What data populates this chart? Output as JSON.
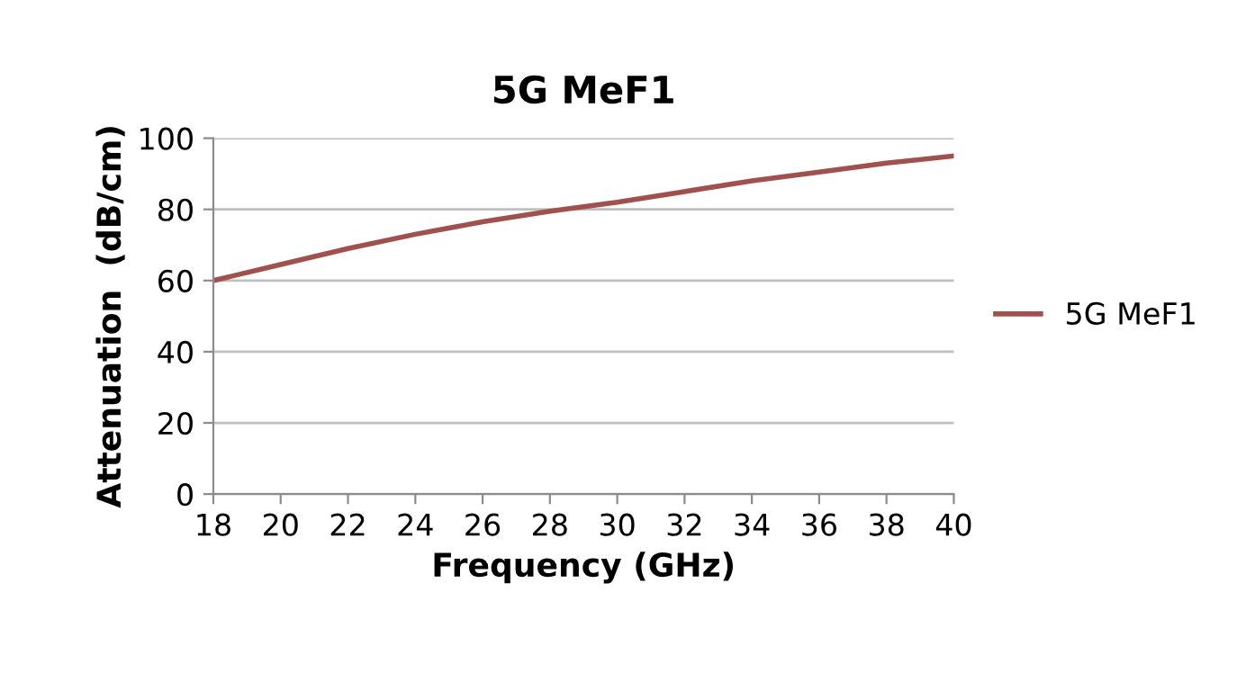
{
  "chart_data": {
    "type": "line",
    "title": "5G MeF1",
    "xlabel": "Frequency (GHz)",
    "ylabel": "Attenuation  (dB/cm)",
    "x": [
      18,
      20,
      22,
      24,
      26,
      28,
      30,
      32,
      34,
      36,
      38,
      40
    ],
    "series": [
      {
        "name": "5G MeF1",
        "color": "#a0504d",
        "values": [
          60,
          64.5,
          69,
          73,
          76.5,
          79.5,
          82,
          85,
          88,
          90.5,
          93,
          95
        ]
      }
    ],
    "xlim": [
      18,
      40
    ],
    "xticks": [
      18,
      20,
      22,
      24,
      26,
      28,
      30,
      32,
      34,
      36,
      38,
      40
    ],
    "ylim": [
      0,
      100
    ],
    "yticks": [
      0,
      20,
      40,
      60,
      80,
      100
    ],
    "grid": "y",
    "legend": "right",
    "marker": "none",
    "line_style": "solid"
  }
}
